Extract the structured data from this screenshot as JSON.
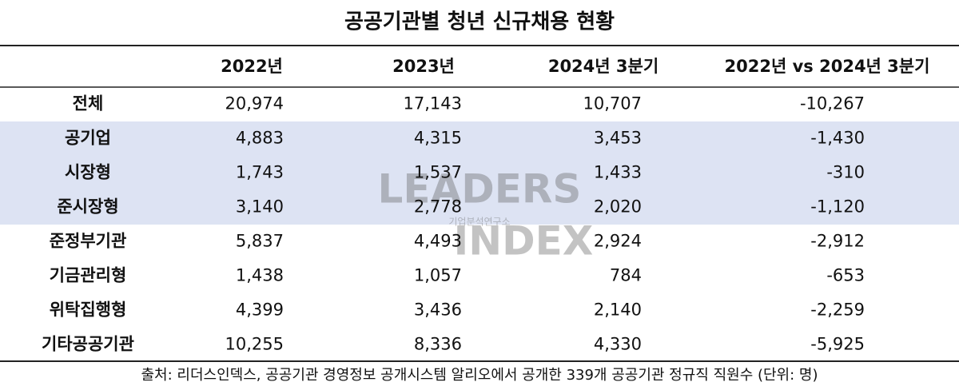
{
  "title": "공공기관별 청년 신규채용 현황",
  "table": {
    "header": [
      "2022년",
      "2023년",
      "2024년 3분기",
      "2022년 vs 2024년 3분기"
    ],
    "rows": [
      [
        "전체",
        "20,974",
        "17,143",
        "10,707",
        "-10,267"
      ],
      [
        "공기업",
        "4,883",
        "4,315",
        "3,453",
        "-1,430"
      ],
      [
        "시장형",
        "1,743",
        "1,537",
        "1,433",
        "-310"
      ],
      [
        "준시장형",
        "3,140",
        "2,778",
        "2,020",
        "-1,120"
      ],
      [
        "준정부기관",
        "5,837",
        "4,493",
        "2,924",
        "-2,912"
      ],
      [
        "기금관리형",
        "1,438",
        "1,057",
        "784",
        "-653"
      ],
      [
        "위탁집행형",
        "4,399",
        "3,436",
        "2,140",
        "-2,259"
      ],
      [
        "기타공공기관",
        "10,255",
        "8,336",
        "4,330",
        "-5,925"
      ]
    ],
    "highlight_rows": [
      1,
      2,
      3
    ],
    "highlight_color": "#dde3f3"
  },
  "watermark": {
    "line1": "LEADERS",
    "line2": "INDEX",
    "sub": "기업분석연구소"
  },
  "footer": "출처: 리더스인덱스, 공공기관 경영정보 공개시스템 알리오에서 공개한 339개 공공기관 정규직 직원수 (단위: 명)"
}
